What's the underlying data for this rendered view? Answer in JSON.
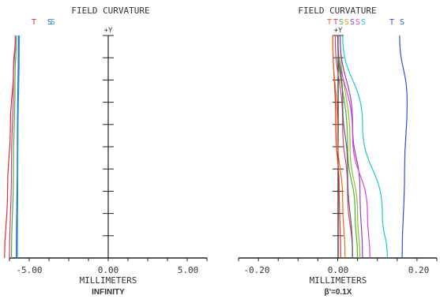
{
  "chart_data": [
    {
      "type": "line",
      "title": "FIELD CURVATURE",
      "xlabel": "MILLIMETERS",
      "subtitle": "INFINITY",
      "y_axis_label": "+Y",
      "xlim": [
        -5.0,
        5.0
      ],
      "ylim": [
        0,
        1
      ],
      "x_tick_labels": [
        "-5.00",
        "0.00",
        "5.00"
      ],
      "legend_labels": [
        {
          "text": "T",
          "color": "#e03030"
        },
        {
          "text": "S",
          "color": "#3050d0"
        },
        {
          "text": "S",
          "color": "#20a8c8"
        }
      ],
      "series": [
        {
          "color": "#e03030",
          "points": [
            [
              -5.25,
              0
            ],
            [
              -5.1,
              0.3
            ],
            [
              -4.95,
              0.6
            ],
            [
              -4.8,
              0.85
            ],
            [
              -4.7,
              1
            ]
          ]
        },
        {
          "color": "#d04080",
          "points": [
            [
              -5.0,
              0
            ],
            [
              -4.9,
              0.4
            ],
            [
              -4.8,
              0.8
            ],
            [
              -4.7,
              1
            ]
          ]
        },
        {
          "color": "#50b040",
          "points": [
            [
              -4.9,
              0
            ],
            [
              -4.8,
              0.4
            ],
            [
              -4.72,
              0.8
            ],
            [
              -4.65,
              1
            ]
          ]
        },
        {
          "color": "#3050d0",
          "points": [
            [
              -4.65,
              0
            ],
            [
              -4.6,
              0.5
            ],
            [
              -4.55,
              1
            ]
          ]
        },
        {
          "color": "#20a8c8",
          "points": [
            [
              -4.6,
              0
            ],
            [
              -4.57,
              0.5
            ],
            [
              -4.5,
              1
            ]
          ]
        }
      ]
    },
    {
      "type": "line",
      "title": "FIELD CURVATURE",
      "xlabel": "MILLIMETERS",
      "subtitle": "β'=0.1X",
      "y_axis_label": "+Y",
      "xlim": [
        -0.2,
        0.2
      ],
      "ylim": [
        0,
        1
      ],
      "x_tick_labels": [
        "-0.20",
        "0.00",
        "0.20"
      ],
      "legend_labels": [
        {
          "text": "T",
          "color": "#e07020"
        },
        {
          "text": "T",
          "color": "#d04080"
        },
        {
          "text": "S",
          "color": "#50b040"
        },
        {
          "text": "S",
          "color": "#d0a020"
        },
        {
          "text": "S",
          "color": "#9040c0"
        },
        {
          "text": "S",
          "color": "#e040e0"
        },
        {
          "text": "S",
          "color": "#20c8c8"
        },
        {
          "text": "T",
          "color": "#3050d0"
        },
        {
          "text": "S",
          "color": "#3050d0"
        }
      ],
      "series": [
        {
          "color": "#e03030",
          "points": [
            [
              -0.01,
              1
            ],
            [
              -0.004,
              0.6
            ],
            [
              0.003,
              0.3
            ],
            [
              0.006,
              0
            ]
          ]
        },
        {
          "color": "#e07020",
          "points": [
            [
              -0.01,
              1
            ],
            [
              0.0,
              0.55
            ],
            [
              0.01,
              0.25
            ],
            [
              0.015,
              0
            ]
          ]
        },
        {
          "color": "#d04080",
          "points": [
            [
              -0.005,
              1
            ],
            [
              0.01,
              0.6
            ],
            [
              0.02,
              0.3
            ],
            [
              0.03,
              0
            ]
          ]
        },
        {
          "color": "#50b040",
          "points": [
            [
              0.0,
              1
            ],
            [
              0.02,
              0.5
            ],
            [
              0.035,
              0.2
            ],
            [
              0.04,
              0
            ]
          ]
        },
        {
          "color": "#90c030",
          "points": [
            [
              0.005,
              1
            ],
            [
              0.025,
              0.5
            ],
            [
              0.04,
              0.2
            ],
            [
              0.045,
              0
            ]
          ]
        },
        {
          "color": "#9040c0",
          "points": [
            [
              0.005,
              1
            ],
            [
              0.03,
              0.6
            ],
            [
              0.045,
              0.3
            ],
            [
              0.05,
              0
            ]
          ]
        },
        {
          "color": "#e040e0",
          "points": [
            [
              0.0,
              1
            ],
            [
              0.03,
              0.55
            ],
            [
              0.06,
              0.2
            ],
            [
              0.065,
              0
            ]
          ]
        },
        {
          "color": "#606060",
          "points": [
            [
              0.0,
              1
            ],
            [
              0.01,
              0.7
            ],
            [
              0.02,
              0.4
            ],
            [
              0.03,
              0
            ]
          ]
        },
        {
          "color": "#20c8c8",
          "points": [
            [
              0.01,
              1
            ],
            [
              0.05,
              0.6
            ],
            [
              0.09,
              0.2
            ],
            [
              0.1,
              0
            ]
          ]
        },
        {
          "color": "#3050d0",
          "points": [
            [
              0.125,
              1
            ],
            [
              0.14,
              0.7
            ],
            [
              0.135,
              0.4
            ],
            [
              0.13,
              0
            ]
          ]
        }
      ]
    }
  ]
}
